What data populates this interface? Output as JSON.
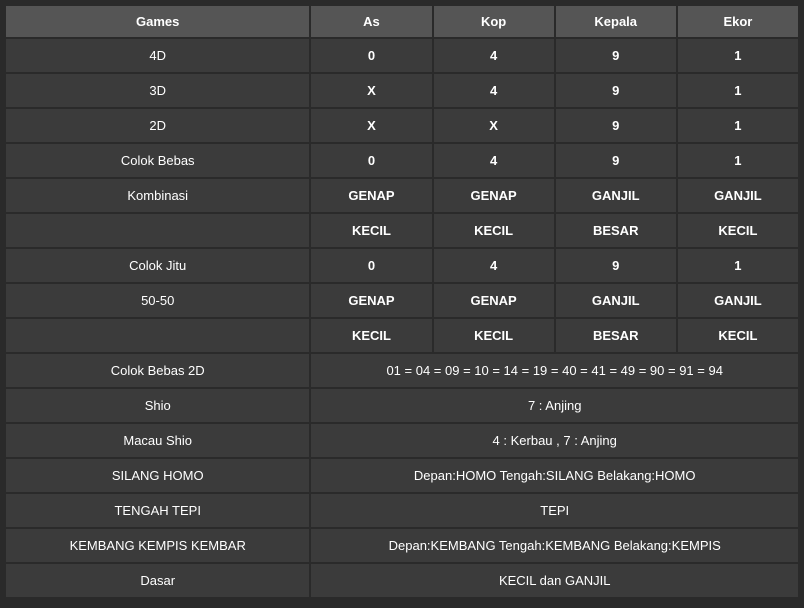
{
  "headers": [
    "Games",
    "As",
    "Kop",
    "Kepala",
    "Ekor"
  ],
  "rows": [
    {
      "label": "4D",
      "cells": [
        "0",
        "4",
        "9",
        "1"
      ],
      "bold": true
    },
    {
      "label": "3D",
      "cells": [
        "X",
        "4",
        "9",
        "1"
      ],
      "bold": true
    },
    {
      "label": "2D",
      "cells": [
        "X",
        "X",
        "9",
        "1"
      ],
      "bold": true
    },
    {
      "label": "Colok Bebas",
      "cells": [
        "0",
        "4",
        "9",
        "1"
      ],
      "bold": true
    },
    {
      "label": "Kombinasi",
      "cells": [
        "GENAP",
        "GENAP",
        "GANJIL",
        "GANJIL"
      ],
      "bold": true
    },
    {
      "label": "",
      "cells": [
        "KECIL",
        "KECIL",
        "BESAR",
        "KECIL"
      ],
      "bold": true
    },
    {
      "label": "Colok Jitu",
      "cells": [
        "0",
        "4",
        "9",
        "1"
      ],
      "bold": true
    },
    {
      "label": "50-50",
      "cells": [
        "GENAP",
        "GENAP",
        "GANJIL",
        "GANJIL"
      ],
      "bold": true
    },
    {
      "label": "",
      "cells": [
        "KECIL",
        "KECIL",
        "BESAR",
        "KECIL"
      ],
      "bold": true
    },
    {
      "label": "Colok Bebas 2D",
      "span": "01 = 04 = 09 = 10 = 14 = 19 = 40 = 41 = 49 = 90 = 91 = 94"
    },
    {
      "label": "Shio",
      "span": "7 : Anjing"
    },
    {
      "label": "Macau Shio",
      "span": "4 : Kerbau , 7 : Anjing"
    },
    {
      "label": "SILANG HOMO",
      "span": "Depan:HOMO Tengah:SILANG Belakang:HOMO"
    },
    {
      "label": "TENGAH TEPI",
      "span": "TEPI"
    },
    {
      "label": "KEMBANG KEMPIS KEMBAR",
      "span": "Depan:KEMBANG Tengah:KEMBANG Belakang:KEMPIS"
    },
    {
      "label": "Dasar",
      "span": "KECIL dan GANJIL"
    }
  ]
}
